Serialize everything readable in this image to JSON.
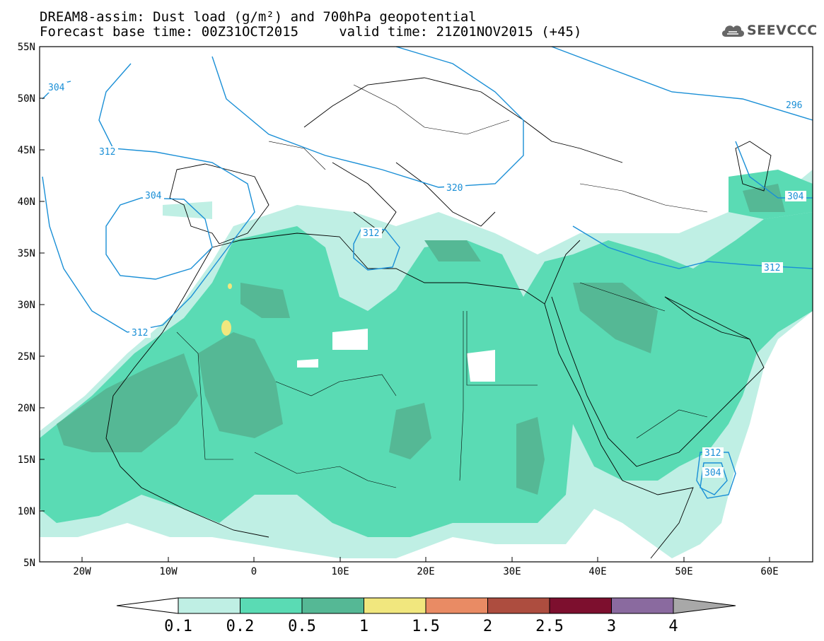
{
  "header": {
    "line1": "DREAM8-assim: Dust load (g/m²) and 700hPa geopotential",
    "line2": "Forecast base time: 00Z31OCT2015     valid time: 21Z01NOV2015 (+45)",
    "logo_text": "SEEVCCC"
  },
  "map": {
    "lon_labels": [
      "20W",
      "10W",
      "0",
      "10E",
      "20E",
      "30E",
      "40E",
      "50E",
      "60E"
    ],
    "lat_labels": [
      "55N",
      "50N",
      "45N",
      "40N",
      "35N",
      "30N",
      "25N",
      "20N",
      "15N",
      "10N",
      "5N"
    ],
    "contour_labels": [
      "304",
      "312",
      "304",
      "312",
      "320",
      "312",
      "296",
      "304",
      "312",
      "312",
      "304"
    ],
    "colors": {
      "contour": "#1a8fd6",
      "border": "#000000"
    }
  },
  "colorbar": {
    "ticks": [
      "0.1",
      "0.2",
      "0.5",
      "1",
      "1.5",
      "2",
      "2.5",
      "3",
      "4"
    ],
    "colors": [
      "#ffffff",
      "#bfefe4",
      "#5adbb4",
      "#55b895",
      "#f1e77e",
      "#e98b64",
      "#ad4d3f",
      "#7d0f2e",
      "#8a6a9f",
      "#a8a8a8"
    ]
  }
}
